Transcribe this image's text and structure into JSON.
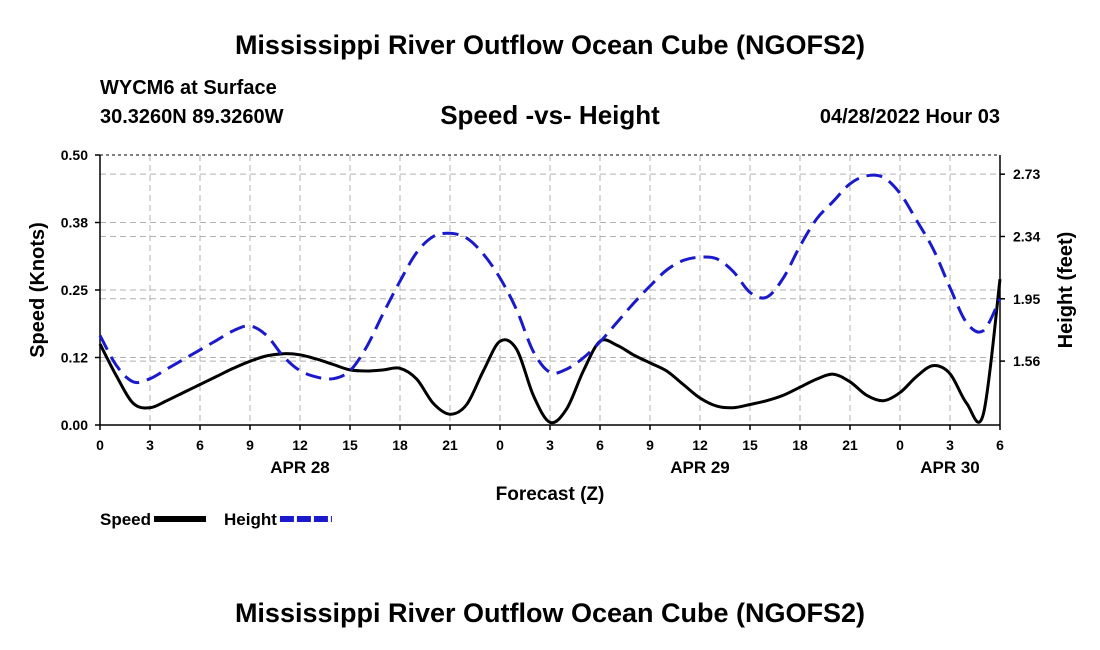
{
  "title": "Mississippi River Outflow Ocean Cube (NGOFS2)",
  "station": "WYCM6 at Surface",
  "coords": "30.3260N  89.3260W",
  "timestamp": "04/28/2022 Hour 03",
  "colors": {
    "speed": "#000000",
    "height": "#1a1acc",
    "grid": "#b0b0b0"
  },
  "chart_data": {
    "type": "line",
    "title": "Speed -vs- Height",
    "xlabel": "Forecast (Z)",
    "ylabel": "Speed (Knots)",
    "y2label": "Height (feet)",
    "xlim": [
      0,
      54
    ],
    "ylim": [
      0,
      0.5
    ],
    "y2lim": [
      1.16,
      2.85
    ],
    "x_ticks": [
      0,
      3,
      6,
      9,
      12,
      15,
      18,
      21,
      24,
      27,
      30,
      33,
      36,
      39,
      42,
      45,
      48,
      51,
      54
    ],
    "x_tick_labels": [
      "0",
      "3",
      "6",
      "9",
      "12",
      "15",
      "18",
      "21",
      "0",
      "3",
      "6",
      "9",
      "12",
      "15",
      "18",
      "21",
      "0",
      "3",
      "6"
    ],
    "y_ticks": [
      0,
      0.125,
      0.25,
      0.375,
      0.5
    ],
    "y_tick_labels": [
      "0.00",
      "0.12",
      "0.25",
      "0.38",
      "0.50"
    ],
    "y2_ticks": [
      1.56,
      1.95,
      2.34,
      2.73
    ],
    "y2_tick_labels": [
      "1.56",
      "1.95",
      "2.34",
      "2.73"
    ],
    "date_labels": [
      {
        "x": 12,
        "label": "APR 28"
      },
      {
        "x": 36,
        "label": "APR 29"
      },
      {
        "x": 51,
        "label": "APR 30"
      }
    ],
    "series": [
      {
        "name": "Speed",
        "axis": "left",
        "style": "solid",
        "x": [
          0,
          1,
          2,
          3,
          4,
          5,
          6,
          7,
          8,
          9,
          10,
          11,
          12,
          13,
          14,
          15,
          16,
          17,
          18,
          19,
          20,
          21,
          22,
          23,
          24,
          25,
          26,
          27,
          28,
          29,
          30,
          31,
          32,
          33,
          34,
          35,
          36,
          37,
          38,
          39,
          40,
          41,
          42,
          43,
          44,
          45,
          46,
          47,
          48,
          49,
          50,
          51,
          52,
          53,
          54
        ],
        "values": [
          0.15,
          0.09,
          0.04,
          0.032,
          0.045,
          0.06,
          0.075,
          0.09,
          0.105,
          0.118,
          0.128,
          0.132,
          0.13,
          0.122,
          0.112,
          0.102,
          0.1,
          0.102,
          0.105,
          0.085,
          0.04,
          0.02,
          0.038,
          0.1,
          0.155,
          0.14,
          0.055,
          0.005,
          0.03,
          0.1,
          0.155,
          0.148,
          0.13,
          0.115,
          0.1,
          0.075,
          0.05,
          0.035,
          0.032,
          0.038,
          0.045,
          0.055,
          0.07,
          0.085,
          0.094,
          0.08,
          0.055,
          0.045,
          0.06,
          0.09,
          0.11,
          0.095,
          0.04,
          0.02,
          0.27
        ]
      },
      {
        "name": "Height",
        "axis": "right",
        "style": "dashed",
        "x": [
          0,
          1,
          2,
          3,
          4,
          5,
          6,
          7,
          8,
          9,
          10,
          11,
          12,
          13,
          14,
          15,
          16,
          17,
          18,
          19,
          20,
          21,
          22,
          23,
          24,
          25,
          26,
          27,
          28,
          29,
          30,
          31,
          32,
          33,
          34,
          35,
          36,
          37,
          38,
          39,
          40,
          41,
          42,
          43,
          44,
          45,
          46,
          47,
          48,
          49,
          50,
          51,
          52,
          53,
          54
        ],
        "values": [
          1.72,
          1.53,
          1.43,
          1.45,
          1.51,
          1.57,
          1.63,
          1.69,
          1.75,
          1.78,
          1.72,
          1.59,
          1.5,
          1.46,
          1.45,
          1.5,
          1.65,
          1.86,
          2.06,
          2.24,
          2.34,
          2.36,
          2.33,
          2.23,
          2.08,
          1.88,
          1.62,
          1.49,
          1.51,
          1.58,
          1.68,
          1.8,
          1.92,
          2.03,
          2.13,
          2.19,
          2.21,
          2.2,
          2.12,
          1.99,
          1.96,
          2.08,
          2.28,
          2.45,
          2.56,
          2.67,
          2.72,
          2.71,
          2.61,
          2.44,
          2.26,
          2.02,
          1.8,
          1.75,
          1.95
        ]
      }
    ],
    "legend": [
      {
        "label": "Speed",
        "style": "solid",
        "position": "bottom-left"
      },
      {
        "label": "Height",
        "style": "dashed",
        "position": "bottom-left"
      }
    ]
  }
}
